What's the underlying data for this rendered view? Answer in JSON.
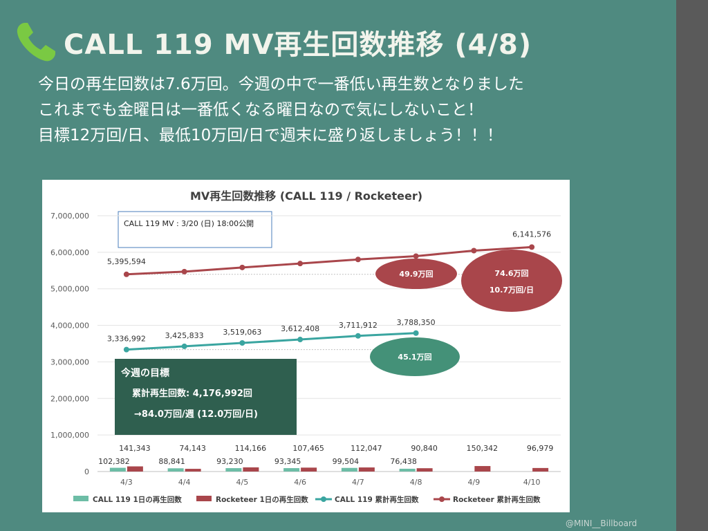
{
  "slide": {
    "title": "CALL 119 MV再生回数推移 (4/8)",
    "lines": [
      "今日の再生回数は7.6万回。今週の中で一番低い再生数となりました",
      "これまでも金曜日は一番低くなる曜日なので気にしないこと！",
      "目標12万回/日、最低10万回/日で週末に盛り返しましょう！！！"
    ],
    "footer": "@MINI__Billboard",
    "phone_icon": "phone-icon",
    "colors": {
      "background": "#4f8a80",
      "strip": "#5a5a5a",
      "phone": "#7ac943"
    }
  },
  "chart_data": {
    "type": "bar",
    "title": "MV再生回数推移 (CALL 119 / Rocketeer)",
    "categories": [
      "4/3",
      "4/4",
      "4/5",
      "4/6",
      "4/7",
      "4/8",
      "4/9",
      "4/10"
    ],
    "ylim": [
      0,
      7000000
    ],
    "yticks": [
      "0",
      "1,000,000",
      "2,000,000",
      "3,000,000",
      "4,000,000",
      "5,000,000",
      "6,000,000",
      "7,000,000"
    ],
    "series": [
      {
        "name": "CALL 119 1日の再生回数",
        "kind": "bar",
        "color": "#6dbda6",
        "values": [
          102382,
          88841,
          93230,
          93345,
          99504,
          76438,
          null,
          null
        ],
        "labels": [
          "102,382",
          "88,841",
          "93,230",
          "93,345",
          "99,504",
          "76,438",
          "",
          ""
        ]
      },
      {
        "name": "Rocketeer 1日の再生回数",
        "kind": "bar",
        "color": "#a9464b",
        "values": [
          141343,
          74143,
          114166,
          107465,
          112047,
          90840,
          150342,
          96979
        ],
        "labels": [
          "141,343",
          "74,143",
          "114,166",
          "107,465",
          "112,047",
          "90,840",
          "150,342",
          "96,979"
        ]
      },
      {
        "name": "CALL 119 累計再生回数",
        "kind": "line",
        "color": "#3aa5a0",
        "values": [
          3336992,
          3425833,
          3519063,
          3612408,
          3711912,
          3788350,
          null,
          null
        ],
        "labels": [
          "3,336,992",
          "3,425,833",
          "3,519,063",
          "3,612,408",
          "3,711,912",
          "3,788,350",
          "",
          ""
        ]
      },
      {
        "name": "Rocketeer 累計再生回数",
        "kind": "line",
        "color": "#a9464b",
        "values": [
          5395594,
          5469737,
          5583903,
          5691368,
          5803415,
          5894255,
          6044597,
          6141576
        ],
        "labels": [
          "5,395,594",
          "",
          "",
          "",
          "",
          "",
          "",
          "6,141,576"
        ]
      }
    ],
    "annotations": {
      "release_note": "CALL 119 MV : 3/20 (日) 18:00公開",
      "goal_title": "今週の目標",
      "goal_line1": "累計再生回数: 4,176,992回",
      "goal_line2": "→84.0万回/週 (12.0万回/日)",
      "call_weekly": "45.1万回",
      "rocketeer_weekly": "49.9万回",
      "rocketeer_total": "74.6万回",
      "rocketeer_per_day": "10.7万回/日"
    }
  }
}
